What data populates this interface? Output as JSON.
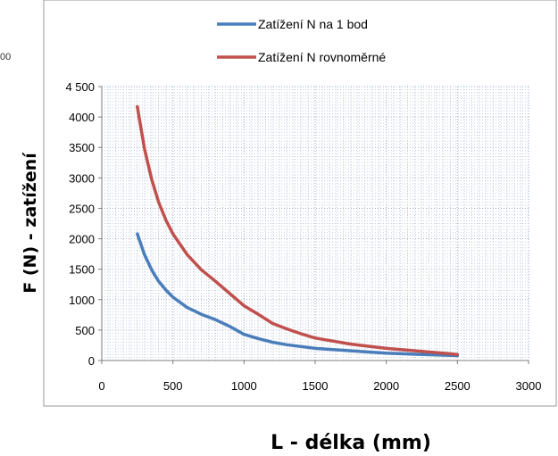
{
  "stray_label": "00",
  "chart_data": {
    "type": "line",
    "title": "",
    "xlabel": "L - délka (mm)",
    "ylabel": "F (N) - zatížení",
    "xlim": [
      0,
      3000
    ],
    "ylim": [
      0,
      4500
    ],
    "xticks": [
      0,
      500,
      1000,
      1500,
      2000,
      2500,
      3000
    ],
    "yticks": [
      0,
      500,
      1000,
      1500,
      2000,
      2500,
      3000,
      3500,
      4000,
      4500
    ],
    "xtick_labels": [
      "0",
      "500",
      "1000",
      "1500",
      "2000",
      "2500",
      "3000"
    ],
    "ytick_labels": [
      "0",
      "500",
      "1000",
      "1500",
      "2000",
      "2500",
      "3000",
      "3500",
      "4000",
      "4 500"
    ],
    "grid": true,
    "legend_position": "top",
    "series": [
      {
        "name": "Zatížení N na 1 bod",
        "color": "#4a7ebb",
        "points": [
          [
            250,
            2080
          ],
          [
            300,
            1740
          ],
          [
            350,
            1490
          ],
          [
            400,
            1300
          ],
          [
            450,
            1160
          ],
          [
            500,
            1040
          ],
          [
            600,
            870
          ],
          [
            700,
            760
          ],
          [
            800,
            670
          ],
          [
            900,
            560
          ],
          [
            1000,
            430
          ],
          [
            1100,
            360
          ],
          [
            1200,
            300
          ],
          [
            1300,
            260
          ],
          [
            1400,
            230
          ],
          [
            1500,
            200
          ],
          [
            1750,
            160
          ],
          [
            2000,
            120
          ],
          [
            2250,
            100
          ],
          [
            2500,
            80
          ]
        ]
      },
      {
        "name": "Zatížení N rovnoměrné",
        "color": "#c0504d",
        "points": [
          [
            250,
            4170
          ],
          [
            300,
            3480
          ],
          [
            350,
            2980
          ],
          [
            400,
            2600
          ],
          [
            450,
            2310
          ],
          [
            500,
            2080
          ],
          [
            600,
            1740
          ],
          [
            700,
            1490
          ],
          [
            800,
            1300
          ],
          [
            900,
            1100
          ],
          [
            1000,
            900
          ],
          [
            1100,
            760
          ],
          [
            1200,
            610
          ],
          [
            1300,
            520
          ],
          [
            1400,
            440
          ],
          [
            1500,
            370
          ],
          [
            1750,
            270
          ],
          [
            2000,
            200
          ],
          [
            2250,
            150
          ],
          [
            2500,
            100
          ]
        ]
      }
    ]
  }
}
